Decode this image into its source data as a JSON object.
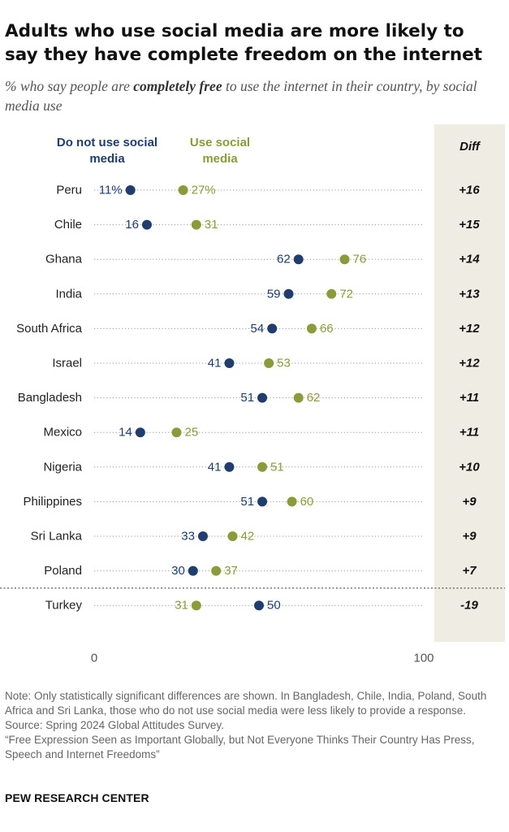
{
  "title": "Adults who use social media are more likely to say they have complete freedom on the internet",
  "subtitle": {
    "before": "% who say people are ",
    "emphasis": "completely free",
    "after": " to use the internet in their country, by social media use"
  },
  "legend": {
    "non_users": "Do not use social media",
    "users": "Use social media"
  },
  "diff_header": "Diff",
  "colors": {
    "non_users": "#1f3d6f",
    "users": "#8c9b3a",
    "diff_band": "#efece4"
  },
  "chart_data": {
    "type": "dot",
    "xlim": [
      0,
      100
    ],
    "x_ticks": [
      "0",
      "100"
    ],
    "series_keys": [
      "non_users",
      "users"
    ],
    "rows": [
      {
        "country": "Peru",
        "non_users": 11,
        "users": 27,
        "non_label": "11%",
        "user_label": "27%",
        "diff": "+16"
      },
      {
        "country": "Chile",
        "non_users": 16,
        "users": 31,
        "non_label": "16",
        "user_label": "31",
        "diff": "+15"
      },
      {
        "country": "Ghana",
        "non_users": 62,
        "users": 76,
        "non_label": "62",
        "user_label": "76",
        "diff": "+14"
      },
      {
        "country": "India",
        "non_users": 59,
        "users": 72,
        "non_label": "59",
        "user_label": "72",
        "diff": "+13"
      },
      {
        "country": "South Africa",
        "non_users": 54,
        "users": 66,
        "non_label": "54",
        "user_label": "66",
        "diff": "+12"
      },
      {
        "country": "Israel",
        "non_users": 41,
        "users": 53,
        "non_label": "41",
        "user_label": "53",
        "diff": "+12"
      },
      {
        "country": "Bangladesh",
        "non_users": 51,
        "users": 62,
        "non_label": "51",
        "user_label": "62",
        "diff": "+11"
      },
      {
        "country": "Mexico",
        "non_users": 14,
        "users": 25,
        "non_label": "14",
        "user_label": "25",
        "diff": "+11"
      },
      {
        "country": "Nigeria",
        "non_users": 41,
        "users": 51,
        "non_label": "41",
        "user_label": "51",
        "diff": "+10"
      },
      {
        "country": "Philippines",
        "non_users": 51,
        "users": 60,
        "non_label": "51",
        "user_label": "60",
        "diff": "+9"
      },
      {
        "country": "Sri Lanka",
        "non_users": 33,
        "users": 42,
        "non_label": "33",
        "user_label": "42",
        "diff": "+9"
      },
      {
        "country": "Poland",
        "non_users": 30,
        "users": 37,
        "non_label": "30",
        "user_label": "37",
        "diff": "+7"
      },
      {
        "country": "Turkey",
        "non_users": 50,
        "users": 31,
        "non_label": "50",
        "user_label": "31",
        "diff": "-19"
      }
    ]
  },
  "notes": [
    "Note: Only statistically significant differences are shown. In Bangladesh, Chile, India, Poland, South Africa and Sri Lanka, those who do not use social media were less likely to provide a response.",
    "Source: Spring 2024 Global Attitudes Survey.",
    "“Free Expression Seen as Important Globally, but Not Everyone Thinks Their Country Has Press, Speech and Internet Freedoms”"
  ],
  "brand": "PEW RESEARCH CENTER"
}
